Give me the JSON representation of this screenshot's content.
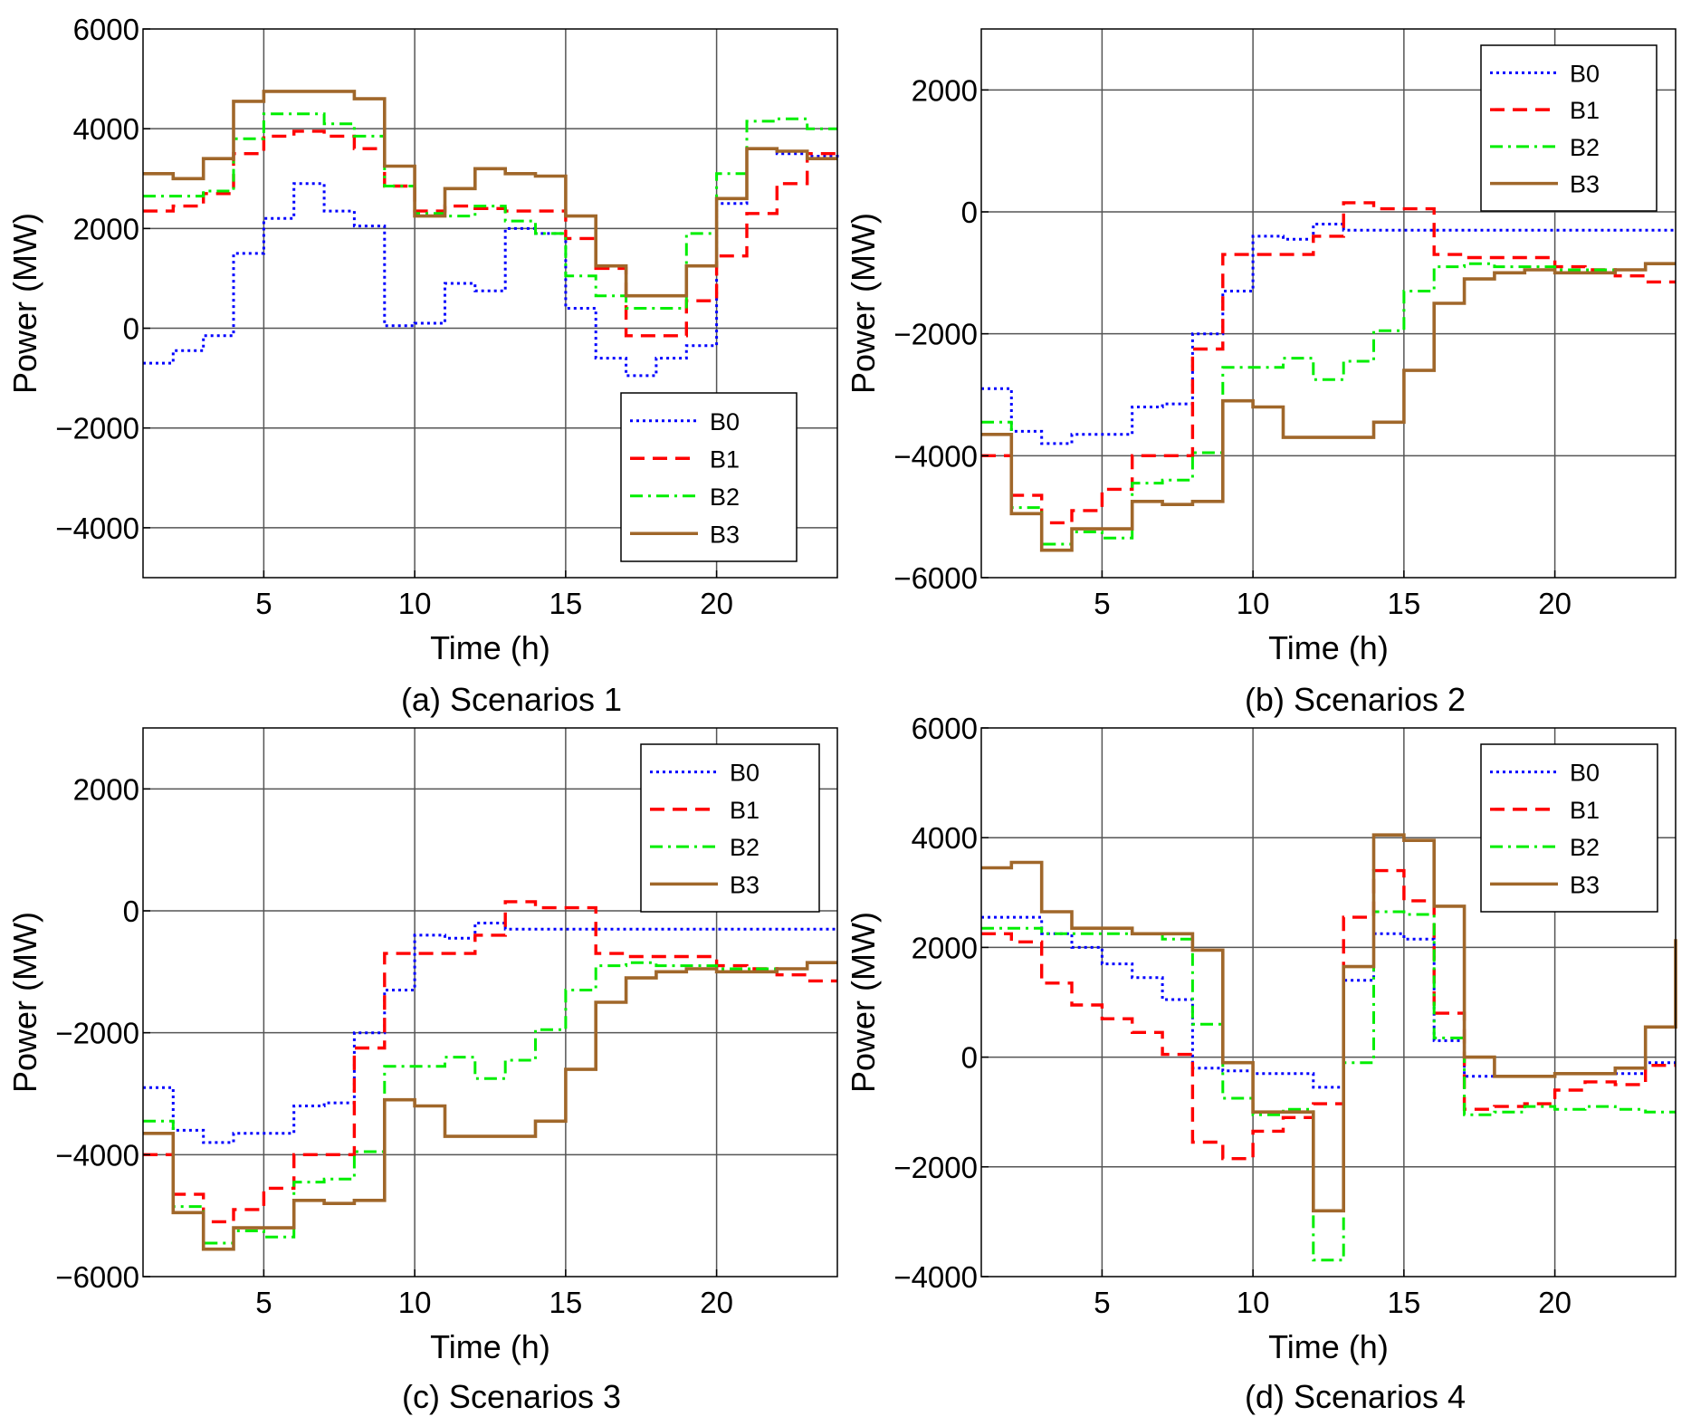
{
  "chart_data": [
    {
      "type": "line",
      "caption": "(a) Scenarios 1",
      "xlabel": "Time (h)",
      "ylabel": "Power (MW)",
      "xlim": [
        1,
        24
      ],
      "ylim": [
        -5000,
        6000
      ],
      "xticks": [
        5,
        10,
        15,
        20
      ],
      "xtick_labels": [
        "5",
        "10",
        "15",
        "20"
      ],
      "yticks": [
        -4000,
        -2000,
        0,
        2000,
        4000,
        6000
      ],
      "ytick_labels": [
        "−4000",
        "−2000",
        "0",
        "2000",
        "4000",
        "6000"
      ],
      "grid": true,
      "legend_position": "bottom-right",
      "x": [
        1,
        2,
        3,
        4,
        5,
        6,
        7,
        8,
        9,
        10,
        11,
        12,
        13,
        14,
        15,
        16,
        17,
        18,
        19,
        20,
        21,
        22,
        23,
        24
      ],
      "series": [
        {
          "name": "B0",
          "color": "#0000ff",
          "style": "dotted",
          "values": [
            -700,
            -450,
            -150,
            1500,
            2200,
            2900,
            2350,
            2050,
            50,
            100,
            900,
            750,
            2000,
            1900,
            400,
            -600,
            -950,
            -600,
            -350,
            2500,
            3600,
            3500,
            3450,
            3400
          ]
        },
        {
          "name": "B1",
          "color": "#ff0000",
          "style": "dashed",
          "values": [
            2350,
            2450,
            2700,
            3500,
            3850,
            3950,
            3850,
            3600,
            2850,
            2350,
            2450,
            2400,
            2350,
            2350,
            1800,
            1200,
            -150,
            -150,
            550,
            1450,
            2300,
            2900,
            3500,
            3500
          ]
        },
        {
          "name": "B2",
          "color": "#00ee00",
          "style": "dashdot",
          "values": [
            2650,
            2650,
            2750,
            3800,
            4300,
            4300,
            4100,
            3850,
            2850,
            2300,
            2250,
            2450,
            2150,
            1900,
            1050,
            650,
            400,
            400,
            1900,
            3100,
            4150,
            4200,
            4000,
            4000
          ]
        },
        {
          "name": "B3",
          "color": "#a0672a",
          "style": "solid",
          "values": [
            3100,
            3000,
            3400,
            4550,
            4750,
            4750,
            4750,
            4600,
            3250,
            2250,
            2800,
            3200,
            3100,
            3050,
            2250,
            1250,
            650,
            650,
            1250,
            2600,
            3600,
            3550,
            3400,
            3400
          ]
        }
      ]
    },
    {
      "type": "line",
      "caption": "(b) Scenarios 2",
      "xlabel": "Time (h)",
      "ylabel": "Power (MW)",
      "xlim": [
        1,
        24
      ],
      "ylim": [
        -6000,
        3000
      ],
      "xticks": [
        5,
        10,
        15,
        20
      ],
      "xtick_labels": [
        "5",
        "10",
        "15",
        "20"
      ],
      "yticks": [
        -6000,
        -4000,
        -2000,
        0,
        2000
      ],
      "ytick_labels": [
        "−6000",
        "−4000",
        "−2000",
        "0",
        "2000"
      ],
      "grid": true,
      "legend_position": "top-right",
      "x": [
        1,
        2,
        3,
        4,
        5,
        6,
        7,
        8,
        9,
        10,
        11,
        12,
        13,
        14,
        15,
        16,
        17,
        18,
        19,
        20,
        21,
        22,
        23,
        24
      ],
      "series": [
        {
          "name": "B0",
          "color": "#0000ff",
          "style": "dotted",
          "values": [
            -2900,
            -3600,
            -3800,
            -3650,
            -3650,
            -3200,
            -3150,
            -2000,
            -1300,
            -400,
            -450,
            -200,
            -300,
            -300,
            -300,
            -300,
            -300,
            -300,
            -300,
            -300,
            -300,
            -300,
            -300,
            -300
          ]
        },
        {
          "name": "B1",
          "color": "#ff0000",
          "style": "dashed",
          "values": [
            -4000,
            -4650,
            -5100,
            -4900,
            -4550,
            -4000,
            -4000,
            -2250,
            -700,
            -700,
            -700,
            -400,
            150,
            50,
            50,
            -700,
            -750,
            -750,
            -750,
            -900,
            -950,
            -1050,
            -1150,
            -1150
          ]
        },
        {
          "name": "B2",
          "color": "#00ee00",
          "style": "dashdot",
          "values": [
            -3450,
            -4850,
            -5450,
            -5250,
            -5350,
            -4450,
            -4400,
            -3950,
            -2550,
            -2550,
            -2400,
            -2750,
            -2450,
            -1950,
            -1300,
            -900,
            -850,
            -900,
            -900,
            -950,
            -950,
            -950,
            -850,
            -850
          ]
        },
        {
          "name": "B3",
          "color": "#a0672a",
          "style": "solid",
          "values": [
            -3650,
            -4950,
            -5550,
            -5200,
            -5200,
            -4750,
            -4800,
            -4750,
            -3100,
            -3200,
            -3700,
            -3700,
            -3700,
            -3450,
            -2600,
            -1500,
            -1100,
            -1000,
            -950,
            -1000,
            -1000,
            -950,
            -850,
            -850
          ]
        }
      ]
    },
    {
      "type": "line",
      "caption": "(c) Scenarios 3",
      "xlabel": "Time (h)",
      "ylabel": "Power (MW)",
      "xlim": [
        1,
        24
      ],
      "ylim": [
        -6000,
        3000
      ],
      "xticks": [
        5,
        10,
        15,
        20
      ],
      "xtick_labels": [
        "5",
        "10",
        "15",
        "20"
      ],
      "yticks": [
        -6000,
        -4000,
        -2000,
        0,
        2000
      ],
      "ytick_labels": [
        "−6000",
        "−4000",
        "−2000",
        "0",
        "2000"
      ],
      "grid": true,
      "legend_position": "top-right",
      "x": [
        1,
        2,
        3,
        4,
        5,
        6,
        7,
        8,
        9,
        10,
        11,
        12,
        13,
        14,
        15,
        16,
        17,
        18,
        19,
        20,
        21,
        22,
        23,
        24
      ],
      "series": [
        {
          "name": "B0",
          "color": "#0000ff",
          "style": "dotted",
          "values": [
            -2900,
            -3600,
            -3800,
            -3650,
            -3650,
            -3200,
            -3150,
            -2000,
            -1300,
            -400,
            -450,
            -200,
            -300,
            -300,
            -300,
            -300,
            -300,
            -300,
            -300,
            -300,
            -300,
            -300,
            -300,
            -300
          ]
        },
        {
          "name": "B1",
          "color": "#ff0000",
          "style": "dashed",
          "values": [
            -4000,
            -4650,
            -5100,
            -4900,
            -4550,
            -4000,
            -4000,
            -2250,
            -700,
            -700,
            -700,
            -400,
            150,
            50,
            50,
            -700,
            -750,
            -750,
            -750,
            -900,
            -950,
            -1050,
            -1150,
            -1150
          ]
        },
        {
          "name": "B2",
          "color": "#00ee00",
          "style": "dashdot",
          "values": [
            -3450,
            -4850,
            -5450,
            -5250,
            -5350,
            -4450,
            -4400,
            -3950,
            -2550,
            -2550,
            -2400,
            -2750,
            -2450,
            -1950,
            -1300,
            -900,
            -850,
            -900,
            -900,
            -950,
            -950,
            -950,
            -850,
            -850
          ]
        },
        {
          "name": "B3",
          "color": "#a0672a",
          "style": "solid",
          "values": [
            -3650,
            -4950,
            -5550,
            -5200,
            -5200,
            -4750,
            -4800,
            -4750,
            -3100,
            -3200,
            -3700,
            -3700,
            -3700,
            -3450,
            -2600,
            -1500,
            -1100,
            -1000,
            -950,
            -1000,
            -1000,
            -950,
            -850,
            -850
          ]
        }
      ]
    },
    {
      "type": "line",
      "caption": "(d) Scenarios 4",
      "xlabel": "Time (h)",
      "ylabel": "Power (MW)",
      "xlim": [
        1,
        24
      ],
      "ylim": [
        -4000,
        6000
      ],
      "xticks": [
        5,
        10,
        15,
        20
      ],
      "xtick_labels": [
        "5",
        "10",
        "15",
        "20"
      ],
      "yticks": [
        -4000,
        -2000,
        0,
        2000,
        4000,
        6000
      ],
      "ytick_labels": [
        "−4000",
        "−2000",
        "0",
        "2000",
        "4000",
        "6000"
      ],
      "grid": true,
      "legend_position": "top-right",
      "x": [
        1,
        2,
        3,
        4,
        5,
        6,
        7,
        8,
        9,
        10,
        11,
        12,
        13,
        14,
        15,
        16,
        17,
        18,
        19,
        20,
        21,
        22,
        23,
        24
      ],
      "series": [
        {
          "name": "B0",
          "color": "#0000ff",
          "style": "dotted",
          "values": [
            2550,
            2550,
            2250,
            2000,
            1700,
            1450,
            1050,
            -200,
            -250,
            -300,
            -300,
            -550,
            1400,
            2250,
            2150,
            300,
            -350,
            -350,
            -350,
            -300,
            -300,
            -300,
            -100,
            -100
          ]
        },
        {
          "name": "B1",
          "color": "#ff0000",
          "style": "dashed",
          "values": [
            2250,
            2100,
            1350,
            950,
            700,
            450,
            50,
            -1550,
            -1850,
            -1350,
            -1100,
            -850,
            2550,
            3400,
            2850,
            800,
            -950,
            -900,
            -850,
            -600,
            -450,
            -500,
            -150,
            -150
          ]
        },
        {
          "name": "B2",
          "color": "#00ee00",
          "style": "dashdot",
          "values": [
            2350,
            2350,
            2250,
            2250,
            2250,
            2250,
            2150,
            600,
            -750,
            -1050,
            -950,
            -3700,
            -100,
            2650,
            2600,
            350,
            -1050,
            -1000,
            -900,
            -950,
            -900,
            -950,
            -1000,
            -1000
          ]
        },
        {
          "name": "B3",
          "color": "#a0672a",
          "style": "solid",
          "values": [
            3450,
            3550,
            2650,
            2350,
            2350,
            2250,
            2250,
            1950,
            -100,
            -1000,
            -1000,
            -2800,
            1650,
            4050,
            3950,
            2750,
            0,
            -350,
            -350,
            -300,
            -300,
            -200,
            550,
            2150
          ]
        }
      ]
    }
  ]
}
